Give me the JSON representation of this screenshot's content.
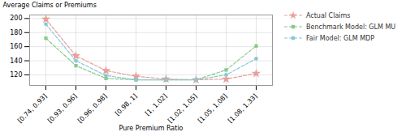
{
  "chart_data": {
    "type": "line",
    "xlabel": "Pure Premium Ratio",
    "ylabel": "Average Claims or Premiums",
    "categories": [
      "[0.74, 0.93]",
      "[0.93, 0.96]",
      "[0.96, 0.98]",
      "[0.98, 1]",
      "[1, 1.02]",
      "[1.02, 1.05]",
      "[1.05, 1.08]",
      "[1.08, 1.33]"
    ],
    "series": [
      {
        "name": "Actual Claims",
        "color": "#e8a09a",
        "marker": "star",
        "line_style": "dashed",
        "values": [
          199,
          147,
          126,
          118,
          114,
          113,
          114,
          122
        ]
      },
      {
        "name": "Benchmark Model: GLM MU",
        "color": "#88c98a",
        "marker": "square",
        "line_style": "dashed",
        "values": [
          172,
          133,
          115,
          113,
          113,
          113,
          127,
          161
        ]
      },
      {
        "name": "Fair Model: GLM MDP",
        "color": "#88c8d8",
        "marker": "circle",
        "line_style": "dashed",
        "values": [
          192,
          140,
          119,
          113,
          113,
          113,
          120,
          143
        ]
      }
    ],
    "ylim": [
      105,
      205
    ],
    "yticks": [
      120,
      140,
      160,
      180,
      200
    ],
    "grid": true,
    "legend": "right"
  }
}
